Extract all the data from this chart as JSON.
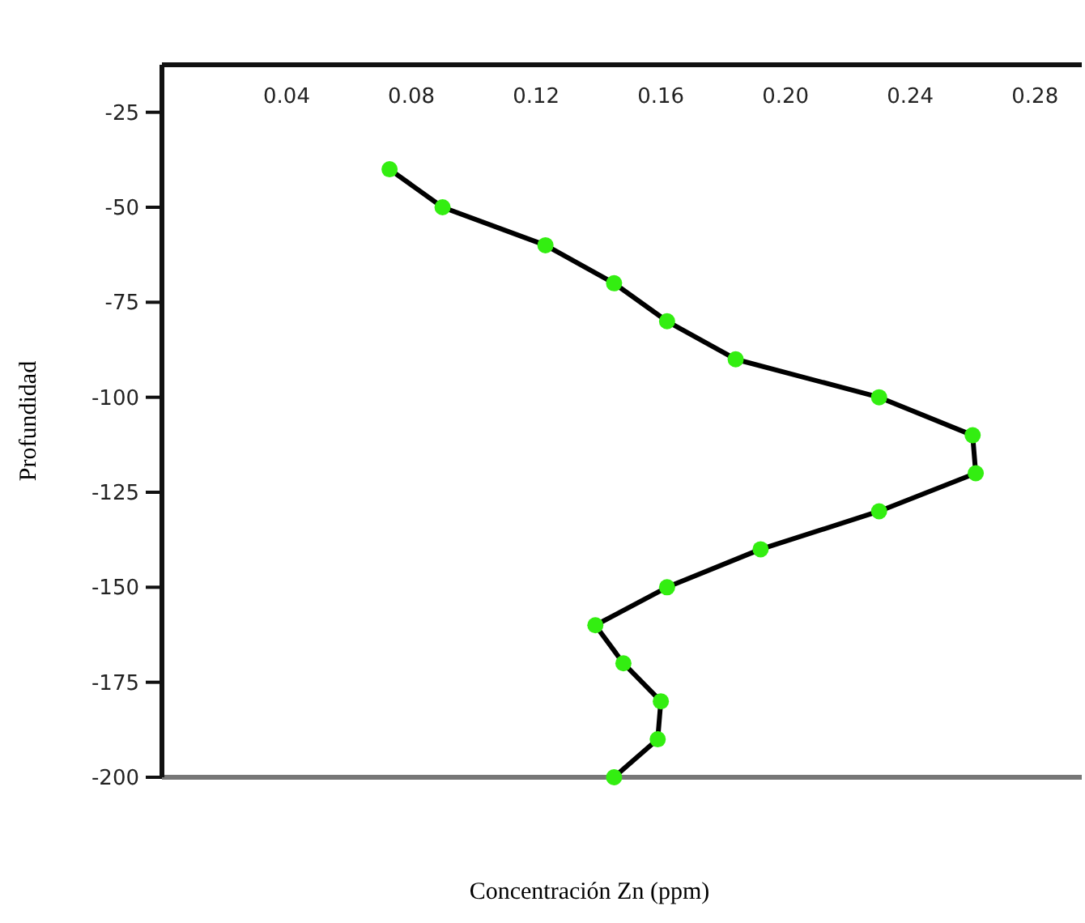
{
  "chart_data": {
    "type": "line",
    "xlabel": "Concentración Zn (ppm)",
    "ylabel": "Profundidad",
    "xlim": [
      0,
      0.295
    ],
    "xticks": [
      {
        "value": 0.04,
        "label": "0.04"
      },
      {
        "value": 0.08,
        "label": "0.08"
      },
      {
        "value": 0.12,
        "label": "0.12"
      },
      {
        "value": 0.16,
        "label": "0.16"
      },
      {
        "value": 0.2,
        "label": "0.20"
      },
      {
        "value": 0.24,
        "label": "0.24"
      },
      {
        "value": 0.28,
        "label": "0.28"
      }
    ],
    "ylim": [
      -200,
      -12.5
    ],
    "yticks": [
      -25,
      -50,
      -75,
      -100,
      -125,
      -150,
      -175,
      -200
    ],
    "grid": false,
    "series": [
      {
        "color": "#000000",
        "marker": "none",
        "x": [
          0.073,
          0.09,
          0.123,
          0.145,
          0.162,
          0.184,
          0.23,
          0.26,
          0.261,
          0.23,
          0.192,
          0.162,
          0.139,
          0.148,
          0.16,
          0.159,
          0.145
        ],
        "values": [
          -40,
          -50,
          -60,
          -70,
          -80,
          -90,
          -100,
          -110,
          -120,
          -130,
          -140,
          -150,
          -160,
          -170,
          -180,
          -190,
          -200
        ]
      },
      {
        "type": "scatter",
        "color": "#33ee11",
        "marker": "circle",
        "x": [
          0.073,
          0.09,
          0.123,
          0.145,
          0.162,
          0.184,
          0.23,
          0.26,
          0.261,
          0.23,
          0.192,
          0.162,
          0.139,
          0.148,
          0.16,
          0.159,
          0.145
        ],
        "values": [
          -40,
          -50,
          -60,
          -70,
          -80,
          -90,
          -100,
          -110,
          -120,
          -130,
          -140,
          -150,
          -160,
          -170,
          -180,
          -190,
          -200
        ]
      }
    ]
  }
}
